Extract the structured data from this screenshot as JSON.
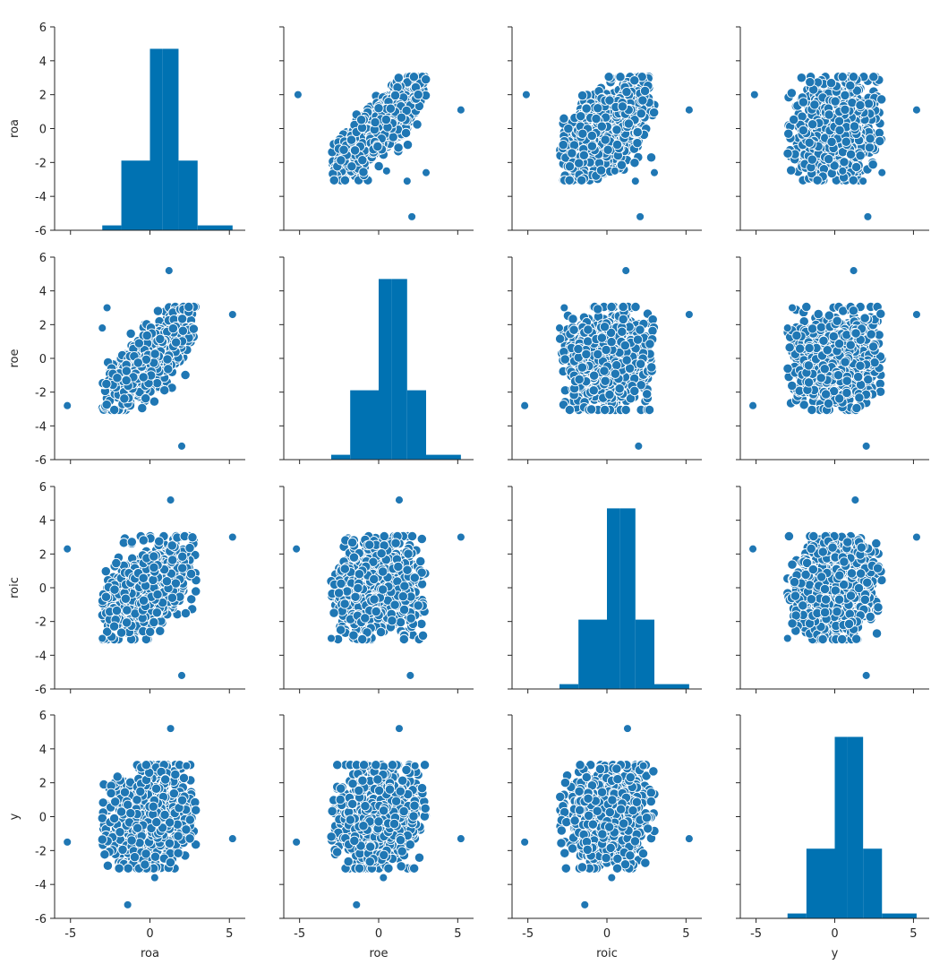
{
  "chart_data": {
    "type": "scatter",
    "variables": [
      "roa",
      "roe",
      "roic",
      "y"
    ],
    "axis_range": [
      -6,
      6
    ],
    "x_ticks": [
      "-5",
      "0",
      "5"
    ],
    "y_ticks": [
      "6",
      "4",
      "2",
      "0",
      "-2",
      "-4",
      "-6"
    ],
    "grid": false,
    "colors": {
      "marker": "#1f77b4",
      "bar": "#0072b2",
      "axes": "#262626"
    },
    "histograms": {
      "edges": [
        -5.2,
        -3.0,
        -1.8,
        0.0,
        0.8,
        1.8,
        3.0,
        5.2
      ],
      "heights": [
        0.0,
        0.3,
        4.3,
        11.2,
        11.2,
        4.3,
        0.3
      ],
      "ylim": [
        0,
        12
      ]
    },
    "outliers": {
      "roa": [
        {
          "x": 2.1,
          "y": -5.2
        },
        {
          "x": 5.2,
          "y": 1.1
        },
        {
          "x": -5.1,
          "y": 2.0
        },
        {
          "x": 3.0,
          "y": -2.6
        },
        {
          "x": 1.8,
          "y": -3.1
        },
        {
          "x": 0.5,
          "y": -2.5
        }
      ],
      "roe": [
        {
          "x": -5.2,
          "y": -2.8
        },
        {
          "x": 5.2,
          "y": 2.6
        },
        {
          "x": 1.2,
          "y": 5.2
        },
        {
          "x": 2.0,
          "y": -5.2
        },
        {
          "x": -2.7,
          "y": 3.0
        },
        {
          "x": -3.0,
          "y": 1.8
        }
      ],
      "roic": [
        {
          "x": -5.2,
          "y": 2.3
        },
        {
          "x": 5.2,
          "y": 3.0
        },
        {
          "x": 1.3,
          "y": 5.2
        },
        {
          "x": 2.0,
          "y": -5.2
        },
        {
          "x": -3.0,
          "y": -3.0
        }
      ],
      "y": [
        {
          "x": -5.2,
          "y": -1.5
        },
        {
          "x": 5.2,
          "y": -1.3
        },
        {
          "x": 1.3,
          "y": 5.2
        },
        {
          "x": -1.4,
          "y": -5.2
        },
        {
          "x": 2.3,
          "y": 3.0
        },
        {
          "x": 0.3,
          "y": -3.6
        }
      ]
    },
    "cluster_note": ""
  }
}
